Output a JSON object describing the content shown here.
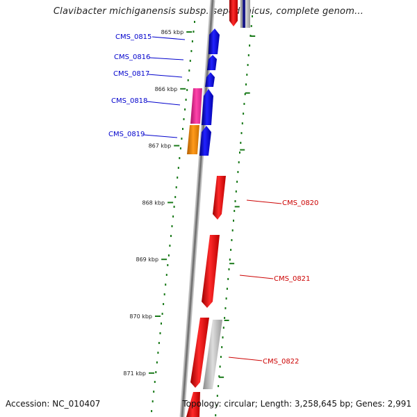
{
  "title": "Clavibacter michiganensis subsp. sepedonicus, complete genom...",
  "footer": {
    "accession": "Accession: NC_010407",
    "topology": "Topology: circular; Length: 3,258,645 bp; Genes: 2,991"
  },
  "colors": {
    "backbone": "#888888",
    "forward_gene": "#0000ee",
    "reverse_gene": "#ee0000",
    "label_forward": "#0000cc",
    "label_reverse": "#cc0000",
    "tick": "#1a7a1a",
    "pink_feature": "#ee3399",
    "orange_feature": "#ee8800",
    "gray_feature": "#bbbbbb"
  },
  "scale": {
    "ticks": [
      {
        "kbp": 865,
        "label": "865 kbp"
      },
      {
        "kbp": 866,
        "label": "866 kbp"
      },
      {
        "kbp": 867,
        "label": "867 kbp"
      },
      {
        "kbp": 868,
        "label": "868 kbp"
      },
      {
        "kbp": 869,
        "label": "869 kbp"
      },
      {
        "kbp": 870,
        "label": "870 kbp"
      },
      {
        "kbp": 871,
        "label": "871 kbp"
      }
    ]
  },
  "genes": [
    {
      "name": "CMS_0815",
      "strand": "forward"
    },
    {
      "name": "CMS_0816",
      "strand": "forward"
    },
    {
      "name": "CMS_0817",
      "strand": "forward"
    },
    {
      "name": "CMS_0818",
      "strand": "forward"
    },
    {
      "name": "CMS_0819",
      "strand": "forward"
    },
    {
      "name": "CMS_0820",
      "strand": "reverse"
    },
    {
      "name": "CMS_0821",
      "strand": "reverse"
    },
    {
      "name": "CMS_0822",
      "strand": "reverse"
    }
  ]
}
